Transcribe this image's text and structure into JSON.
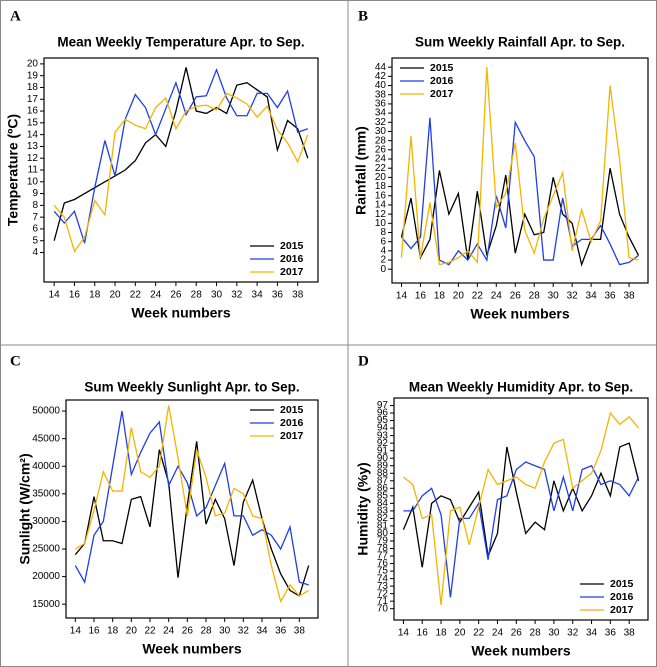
{
  "chart_data": [
    {
      "type": "line",
      "label": "A",
      "title": "Mean Weekly Temperature Apr. to Sep.",
      "x_label": "Week numbers",
      "y_label": "Temperature (ºC)",
      "x": [
        14,
        15,
        16,
        17,
        18,
        19,
        20,
        21,
        22,
        23,
        24,
        25,
        26,
        27,
        28,
        29,
        30,
        31,
        32,
        33,
        34,
        35,
        36,
        37,
        38,
        39
      ],
      "xlim": [
        13,
        40
      ],
      "xticks": [
        14,
        16,
        18,
        20,
        22,
        24,
        26,
        28,
        30,
        32,
        34,
        36,
        38
      ],
      "ylim": [
        1.5,
        20.5
      ],
      "yticks": [
        4,
        5,
        6,
        7,
        8,
        9,
        10,
        11,
        12,
        13,
        14,
        15,
        16,
        17,
        18,
        19,
        20
      ],
      "legend": "lower right",
      "series": [
        {
          "name": "2015",
          "color": "#000000",
          "values": [
            5,
            8.2,
            8.5,
            9,
            9.5,
            10,
            10.5,
            11,
            11.8,
            13.3,
            14,
            13,
            16,
            19.7,
            16,
            15.8,
            16.3,
            15.8,
            18.2,
            18.4,
            17.8,
            17.2,
            12.7,
            15.2,
            14.5,
            12
          ]
        },
        {
          "name": "2016",
          "color": "#1f3fe8",
          "values": [
            7.5,
            6.5,
            7.5,
            4.8,
            9.5,
            13.5,
            10.5,
            15.3,
            17.4,
            16.3,
            14,
            16.2,
            18.4,
            15.7,
            17.2,
            17.3,
            19.5,
            17.1,
            15.6,
            15.6,
            17.5,
            17.5,
            16.3,
            17.7,
            14.2,
            14.5
          ]
        },
        {
          "name": "2017",
          "color": "#f5b400",
          "values": [
            8,
            7,
            4.1,
            5.3,
            8.4,
            7.2,
            14.2,
            15.3,
            14.8,
            14.5,
            16.3,
            17.1,
            14.5,
            16,
            16.4,
            16.5,
            16.1,
            17.5,
            17.1,
            16.6,
            15.5,
            16.4,
            14.4,
            13.3,
            11.7,
            14
          ]
        }
      ]
    },
    {
      "type": "line",
      "label": "B",
      "title": "Sum Weekly Rainfall Apr. to Sep.",
      "x_label": "Week numbers",
      "y_label": "Rainfall (mm)",
      "x": [
        14,
        15,
        16,
        17,
        18,
        19,
        20,
        21,
        22,
        23,
        24,
        25,
        26,
        27,
        28,
        29,
        30,
        31,
        32,
        33,
        34,
        35,
        36,
        37,
        38,
        39
      ],
      "xlim": [
        13,
        40
      ],
      "xticks": [
        14,
        16,
        18,
        20,
        22,
        24,
        26,
        28,
        30,
        32,
        34,
        36,
        38
      ],
      "ylim": [
        -3,
        46
      ],
      "yticks": [
        0,
        2,
        4,
        6,
        8,
        10,
        12,
        14,
        16,
        18,
        20,
        22,
        24,
        26,
        28,
        30,
        32,
        34,
        36,
        38,
        40,
        42,
        44
      ],
      "legend": "upper left",
      "series": [
        {
          "name": "2015",
          "color": "#000000",
          "values": [
            7,
            15.5,
            2.5,
            6.5,
            21.5,
            12,
            16.5,
            2,
            17,
            3,
            9.5,
            20.5,
            3.5,
            12,
            7.5,
            8,
            20,
            12,
            10,
            1,
            6.5,
            6.5,
            22,
            12,
            7,
            3
          ]
        },
        {
          "name": "2016",
          "color": "#1f3fe8",
          "values": [
            7,
            4.5,
            7,
            33,
            2,
            1,
            4,
            2,
            5.5,
            2,
            16,
            9,
            32,
            28,
            24.5,
            2,
            2,
            15.5,
            5,
            6.5,
            6.5,
            9.5,
            5.5,
            1,
            1.5,
            3
          ]
        },
        {
          "name": "2017",
          "color": "#f5b400",
          "values": [
            2.5,
            29,
            2.5,
            14.5,
            1,
            1.5,
            2.5,
            4,
            1.5,
            44,
            13.5,
            16.5,
            27.5,
            8.5,
            3.5,
            11,
            16,
            21,
            4,
            13,
            6,
            10.5,
            40,
            24,
            2.5,
            2
          ]
        }
      ]
    },
    {
      "type": "line",
      "label": "C",
      "title": "Sum Weekly Sunlight Apr. to Sep.",
      "x_label": "Week numbers",
      "y_label": "Sunlight (W/cm²)",
      "x": [
        14,
        15,
        16,
        17,
        18,
        19,
        20,
        21,
        22,
        23,
        24,
        25,
        26,
        27,
        28,
        29,
        30,
        31,
        32,
        33,
        34,
        35,
        36,
        37,
        38,
        39
      ],
      "xlim": [
        13,
        40
      ],
      "xticks": [
        14,
        16,
        18,
        20,
        22,
        24,
        26,
        28,
        30,
        32,
        34,
        36,
        38
      ],
      "ylim": [
        12500,
        52000
      ],
      "yticks": [
        15000,
        20000,
        25000,
        30000,
        35000,
        40000,
        45000,
        50000
      ],
      "legend": "upper right",
      "series": [
        {
          "name": "2015",
          "color": "#000000",
          "values": [
            24000,
            26000,
            34500,
            26500,
            26500,
            26000,
            34000,
            34500,
            29000,
            43000,
            37000,
            19800,
            33000,
            44500,
            29500,
            34000,
            30500,
            22000,
            33500,
            37500,
            30500,
            25000,
            20500,
            17500,
            16500,
            22000
          ]
        },
        {
          "name": "2016",
          "color": "#1f3fe8",
          "values": [
            22000,
            19000,
            27500,
            30000,
            40000,
            50000,
            38500,
            42500,
            46000,
            48000,
            36500,
            40000,
            37000,
            31000,
            32500,
            36500,
            40500,
            31000,
            31000,
            27500,
            28500,
            27500,
            25000,
            29000,
            19000,
            18500
          ]
        },
        {
          "name": "2017",
          "color": "#f5b400",
          "values": [
            25000,
            26000,
            32000,
            39000,
            35500,
            35500,
            47000,
            39000,
            38000,
            40000,
            51000,
            41500,
            31000,
            43000,
            38000,
            31000,
            31500,
            36000,
            35000,
            31000,
            30500,
            22000,
            15500,
            18500,
            16500,
            17500
          ]
        }
      ]
    },
    {
      "type": "line",
      "label": "D",
      "title": "Mean Weekly Humidity Apr. to Sep.",
      "x_label": "Week numbers",
      "y_label": "Humidity (%y)",
      "x": [
        14,
        15,
        16,
        17,
        18,
        19,
        20,
        21,
        22,
        23,
        24,
        25,
        26,
        27,
        28,
        29,
        30,
        31,
        32,
        33,
        34,
        35,
        36,
        37,
        38,
        39
      ],
      "xlim": [
        13,
        40
      ],
      "xticks": [
        14,
        16,
        18,
        20,
        22,
        24,
        26,
        28,
        30,
        32,
        34,
        36,
        38
      ],
      "ylim": [
        68.5,
        98
      ],
      "yticks": [
        70,
        71,
        72,
        73,
        74,
        75,
        76,
        77,
        78,
        79,
        80,
        81,
        82,
        83,
        84,
        85,
        86,
        87,
        88,
        89,
        90,
        91,
        92,
        93,
        94,
        95,
        96,
        97
      ],
      "legend": "lower right",
      "series": [
        {
          "name": "2015",
          "color": "#000000",
          "values": [
            80.5,
            83.5,
            75.5,
            84,
            85,
            84.5,
            81.5,
            83.5,
            85.5,
            77,
            80,
            91.5,
            85.5,
            80,
            81.5,
            80.5,
            87,
            83,
            86,
            83,
            85,
            88,
            85,
            91.5,
            92,
            87
          ]
        },
        {
          "name": "2016",
          "color": "#1f3fe8",
          "values": [
            83,
            83,
            85,
            86,
            82.5,
            71.5,
            82,
            82,
            84,
            76.5,
            84.5,
            85,
            88.5,
            89.5,
            89,
            88.5,
            83,
            87.5,
            83,
            88.5,
            89,
            86.5,
            87,
            86.5,
            85,
            87.5
          ]
        },
        {
          "name": "2017",
          "color": "#f5b400",
          "values": [
            87.5,
            86.5,
            82,
            82.5,
            70.5,
            83,
            83.5,
            78.5,
            83.5,
            88.5,
            86.5,
            87,
            87.5,
            86.5,
            86,
            89.5,
            92,
            92.5,
            86,
            87,
            88,
            91,
            96,
            94.5,
            95.5,
            94
          ]
        }
      ]
    }
  ]
}
